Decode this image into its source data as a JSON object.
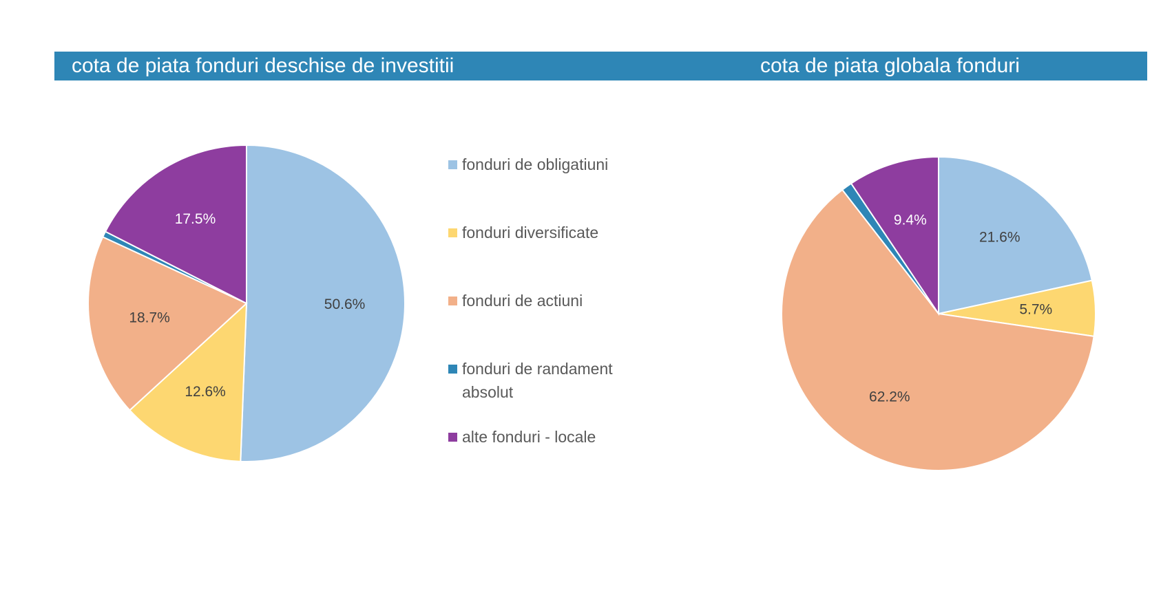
{
  "titles": {
    "left": "cota de piata fonduri deschise de investitii",
    "right": "cota de piata globala fonduri"
  },
  "colors": {
    "title_bar": "#2e86b6",
    "title_text": "#ffffff",
    "slice_border": "#ffffff"
  },
  "legend": [
    {
      "label": "fonduri de obligatiuni",
      "color": "#9dc3e4"
    },
    {
      "label": "fonduri diversificate",
      "color": "#fdd771"
    },
    {
      "label": "fonduri de actiuni",
      "color": "#f2b089"
    },
    {
      "label": "fonduri de randament absolut",
      "color": "#2e86b6"
    },
    {
      "label": "alte fonduri - locale",
      "color": "#8e3d9f"
    }
  ],
  "chart_data": [
    {
      "type": "pie",
      "title": "cota de piata fonduri deschise de investitii",
      "start_angle_deg": 0,
      "direction": "clockwise",
      "slices": [
        {
          "label": "fonduri de obligatiuni",
          "value": 50.6,
          "display": "50.6%",
          "color": "#9dc3e4",
          "label_color": "#404040"
        },
        {
          "label": "fonduri diversificate",
          "value": 12.6,
          "display": "12.6%",
          "color": "#fdd771",
          "label_color": "#404040"
        },
        {
          "label": "fonduri de actiuni",
          "value": 18.7,
          "display": "18.7%",
          "color": "#f2b089",
          "label_color": "#404040"
        },
        {
          "label": "fonduri de randament absolut",
          "value": 0.6,
          "display": "",
          "color": "#2e86b6",
          "label_color": "#ffffff"
        },
        {
          "label": "alte fonduri - locale",
          "value": 17.5,
          "display": "17.5%",
          "color": "#8e3d9f",
          "label_color": "#ffffff"
        }
      ]
    },
    {
      "type": "pie",
      "title": "cota de piata globala fonduri",
      "start_angle_deg": 0,
      "direction": "clockwise",
      "slices": [
        {
          "label": "fonduri de obligatiuni",
          "value": 21.6,
          "display": "21.6%",
          "color": "#9dc3e4",
          "label_color": "#404040"
        },
        {
          "label": "fonduri diversificate",
          "value": 5.7,
          "display": "5.7%",
          "color": "#fdd771",
          "label_color": "#404040"
        },
        {
          "label": "fonduri de actiuni",
          "value": 62.2,
          "display": "62.2%",
          "color": "#f2b089",
          "label_color": "#404040"
        },
        {
          "label": "fonduri de randament absolut",
          "value": 1.1,
          "display": "",
          "color": "#2e86b6",
          "label_color": "#ffffff"
        },
        {
          "label": "alte fonduri - locale",
          "value": 9.4,
          "display": "9.4%",
          "color": "#8e3d9f",
          "label_color": "#ffffff"
        }
      ]
    }
  ]
}
